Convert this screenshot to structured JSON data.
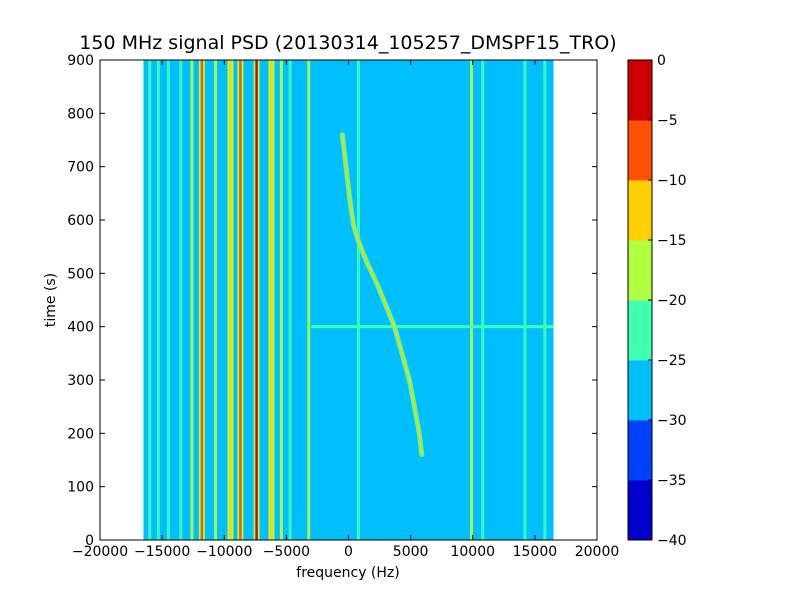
{
  "chart_data": {
    "type": "heatmap",
    "title": "150 MHz signal PSD (20130314_105257_DMSPF15_TRO)",
    "xlabel": "frequency (Hz)",
    "ylabel": "time (s)",
    "xlim": [
      -20000,
      20000
    ],
    "ylim": [
      0,
      900
    ],
    "x_ticks": [
      -20000,
      -15000,
      -10000,
      -5000,
      0,
      5000,
      10000,
      15000,
      20000
    ],
    "x_tick_labels": [
      "−20000",
      "−15000",
      "−10000",
      "−5000",
      "0",
      "5000",
      "10000",
      "15000",
      "20000"
    ],
    "y_ticks": [
      0,
      100,
      200,
      300,
      400,
      500,
      600,
      700,
      800,
      900
    ],
    "y_tick_labels": [
      "0",
      "100",
      "200",
      "300",
      "400",
      "500",
      "600",
      "700",
      "800",
      "900"
    ],
    "data_extent_x": [
      -16500,
      16500
    ],
    "background_level_db": -27.5,
    "colorbar": {
      "levels": [
        -40,
        -35,
        -30,
        -25,
        -20,
        -15,
        -10,
        -5,
        0
      ],
      "tick_labels": [
        "−40",
        "−35",
        "−30",
        "−25",
        "−20",
        "−15",
        "−10",
        "−5",
        "0"
      ],
      "colors": [
        "#0000cd",
        "#0040ff",
        "#00bfff",
        "#40ffb0",
        "#b0ff40",
        "#ffd000",
        "#ff5000",
        "#cd0000"
      ]
    },
    "features": {
      "doppler_track": {
        "level_db": -12,
        "points": [
          [
            -500,
            760
          ],
          [
            -200,
            700
          ],
          [
            100,
            640
          ],
          [
            400,
            590
          ],
          [
            800,
            560
          ],
          [
            1500,
            520
          ],
          [
            2300,
            480
          ],
          [
            3000,
            440
          ],
          [
            3700,
            400
          ],
          [
            4300,
            350
          ],
          [
            4900,
            300
          ],
          [
            5300,
            250
          ],
          [
            5700,
            200
          ],
          [
            5900,
            160
          ]
        ]
      },
      "horizontal_band": {
        "time": 400,
        "x_range": [
          -3000,
          16500
        ],
        "level_db": -22
      },
      "strong_lines": [
        {
          "x": -11800,
          "level_db": -8
        },
        {
          "x": -9500,
          "level_db": -10
        },
        {
          "x": -8700,
          "level_db": -6
        },
        {
          "x": -7400,
          "level_db": -3
        },
        {
          "x": -6200,
          "level_db": -10
        }
      ],
      "medium_lines": [
        {
          "x": -16000,
          "level_db": -22
        },
        {
          "x": -15300,
          "level_db": -22
        },
        {
          "x": -14500,
          "level_db": -20
        },
        {
          "x": -13500,
          "level_db": -20
        },
        {
          "x": -12600,
          "level_db": -18
        },
        {
          "x": -10700,
          "level_db": -18
        },
        {
          "x": -5400,
          "level_db": -18
        },
        {
          "x": -4700,
          "level_db": -20
        },
        {
          "x": -3200,
          "level_db": -17
        },
        {
          "x": 800,
          "level_db": -22
        },
        {
          "x": 9900,
          "level_db": -17
        },
        {
          "x": 10800,
          "level_db": -20
        },
        {
          "x": 14200,
          "level_db": -22
        },
        {
          "x": 15800,
          "level_db": -22
        }
      ]
    }
  }
}
